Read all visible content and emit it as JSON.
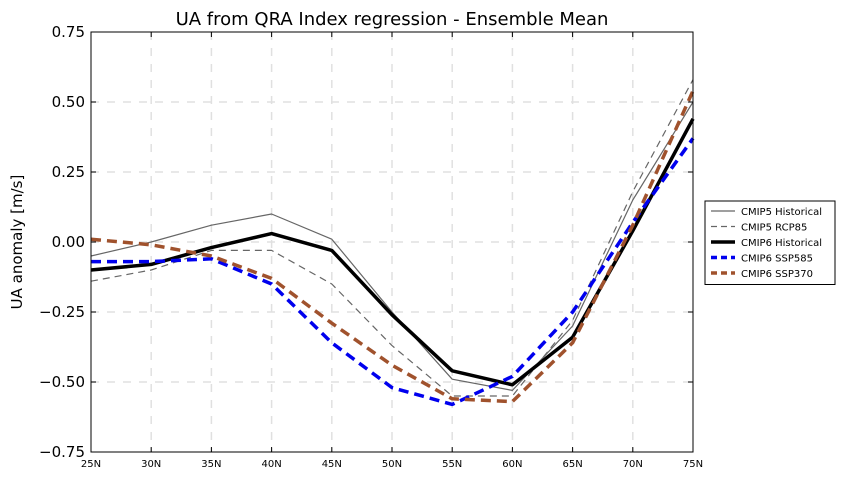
{
  "chart_data": {
    "type": "line",
    "title": "UA from QRA Index regression - Ensemble Mean",
    "xlabel": "",
    "ylabel": "UA anomaly [m/s]",
    "x": [
      25,
      30,
      35,
      40,
      45,
      50,
      55,
      60,
      65,
      70,
      75
    ],
    "xticklabels": [
      "25N",
      "30N",
      "35N",
      "40N",
      "45N",
      "50N",
      "55N",
      "60N",
      "65N",
      "70N",
      "75N"
    ],
    "xlim": [
      25,
      75
    ],
    "ylim": [
      -0.75,
      0.75
    ],
    "yticks": [
      -0.75,
      -0.5,
      -0.25,
      0.0,
      0.25,
      0.5,
      0.75
    ],
    "yticklabels": [
      "−0.75",
      "−0.50",
      "−0.25",
      "0.00",
      "0.25",
      "0.50",
      "0.75"
    ],
    "grid": true,
    "legend_position": "right, outside plot",
    "series": [
      {
        "name": "CMIP5 Historical",
        "color": "#666666",
        "style": "solid",
        "width": 1.2,
        "values": [
          -0.05,
          0.0,
          0.06,
          0.1,
          0.01,
          -0.25,
          -0.49,
          -0.53,
          -0.3,
          0.15,
          0.5
        ]
      },
      {
        "name": "CMIP5 RCP85",
        "color": "#666666",
        "style": "dashed",
        "width": 1.2,
        "values": [
          -0.14,
          -0.1,
          -0.03,
          -0.03,
          -0.15,
          -0.37,
          -0.55,
          -0.55,
          -0.28,
          0.18,
          0.58
        ]
      },
      {
        "name": "CMIP6 Historical",
        "color": "#000000",
        "style": "solid",
        "width": 3.5,
        "values": [
          -0.1,
          -0.08,
          -0.02,
          0.03,
          -0.03,
          -0.26,
          -0.46,
          -0.51,
          -0.34,
          0.04,
          0.44
        ]
      },
      {
        "name": "CMIP6 SSP585",
        "color": "#0000ee",
        "style": "dashed",
        "width": 3.5,
        "values": [
          -0.07,
          -0.07,
          -0.06,
          -0.15,
          -0.36,
          -0.52,
          -0.58,
          -0.48,
          -0.25,
          0.07,
          0.37
        ]
      },
      {
        "name": "CMIP6 SSP370",
        "color": "#a0522d",
        "style": "dashed",
        "width": 3.5,
        "values": [
          0.01,
          -0.01,
          -0.05,
          -0.13,
          -0.29,
          -0.44,
          -0.56,
          -0.57,
          -0.36,
          0.06,
          0.54
        ]
      }
    ]
  }
}
